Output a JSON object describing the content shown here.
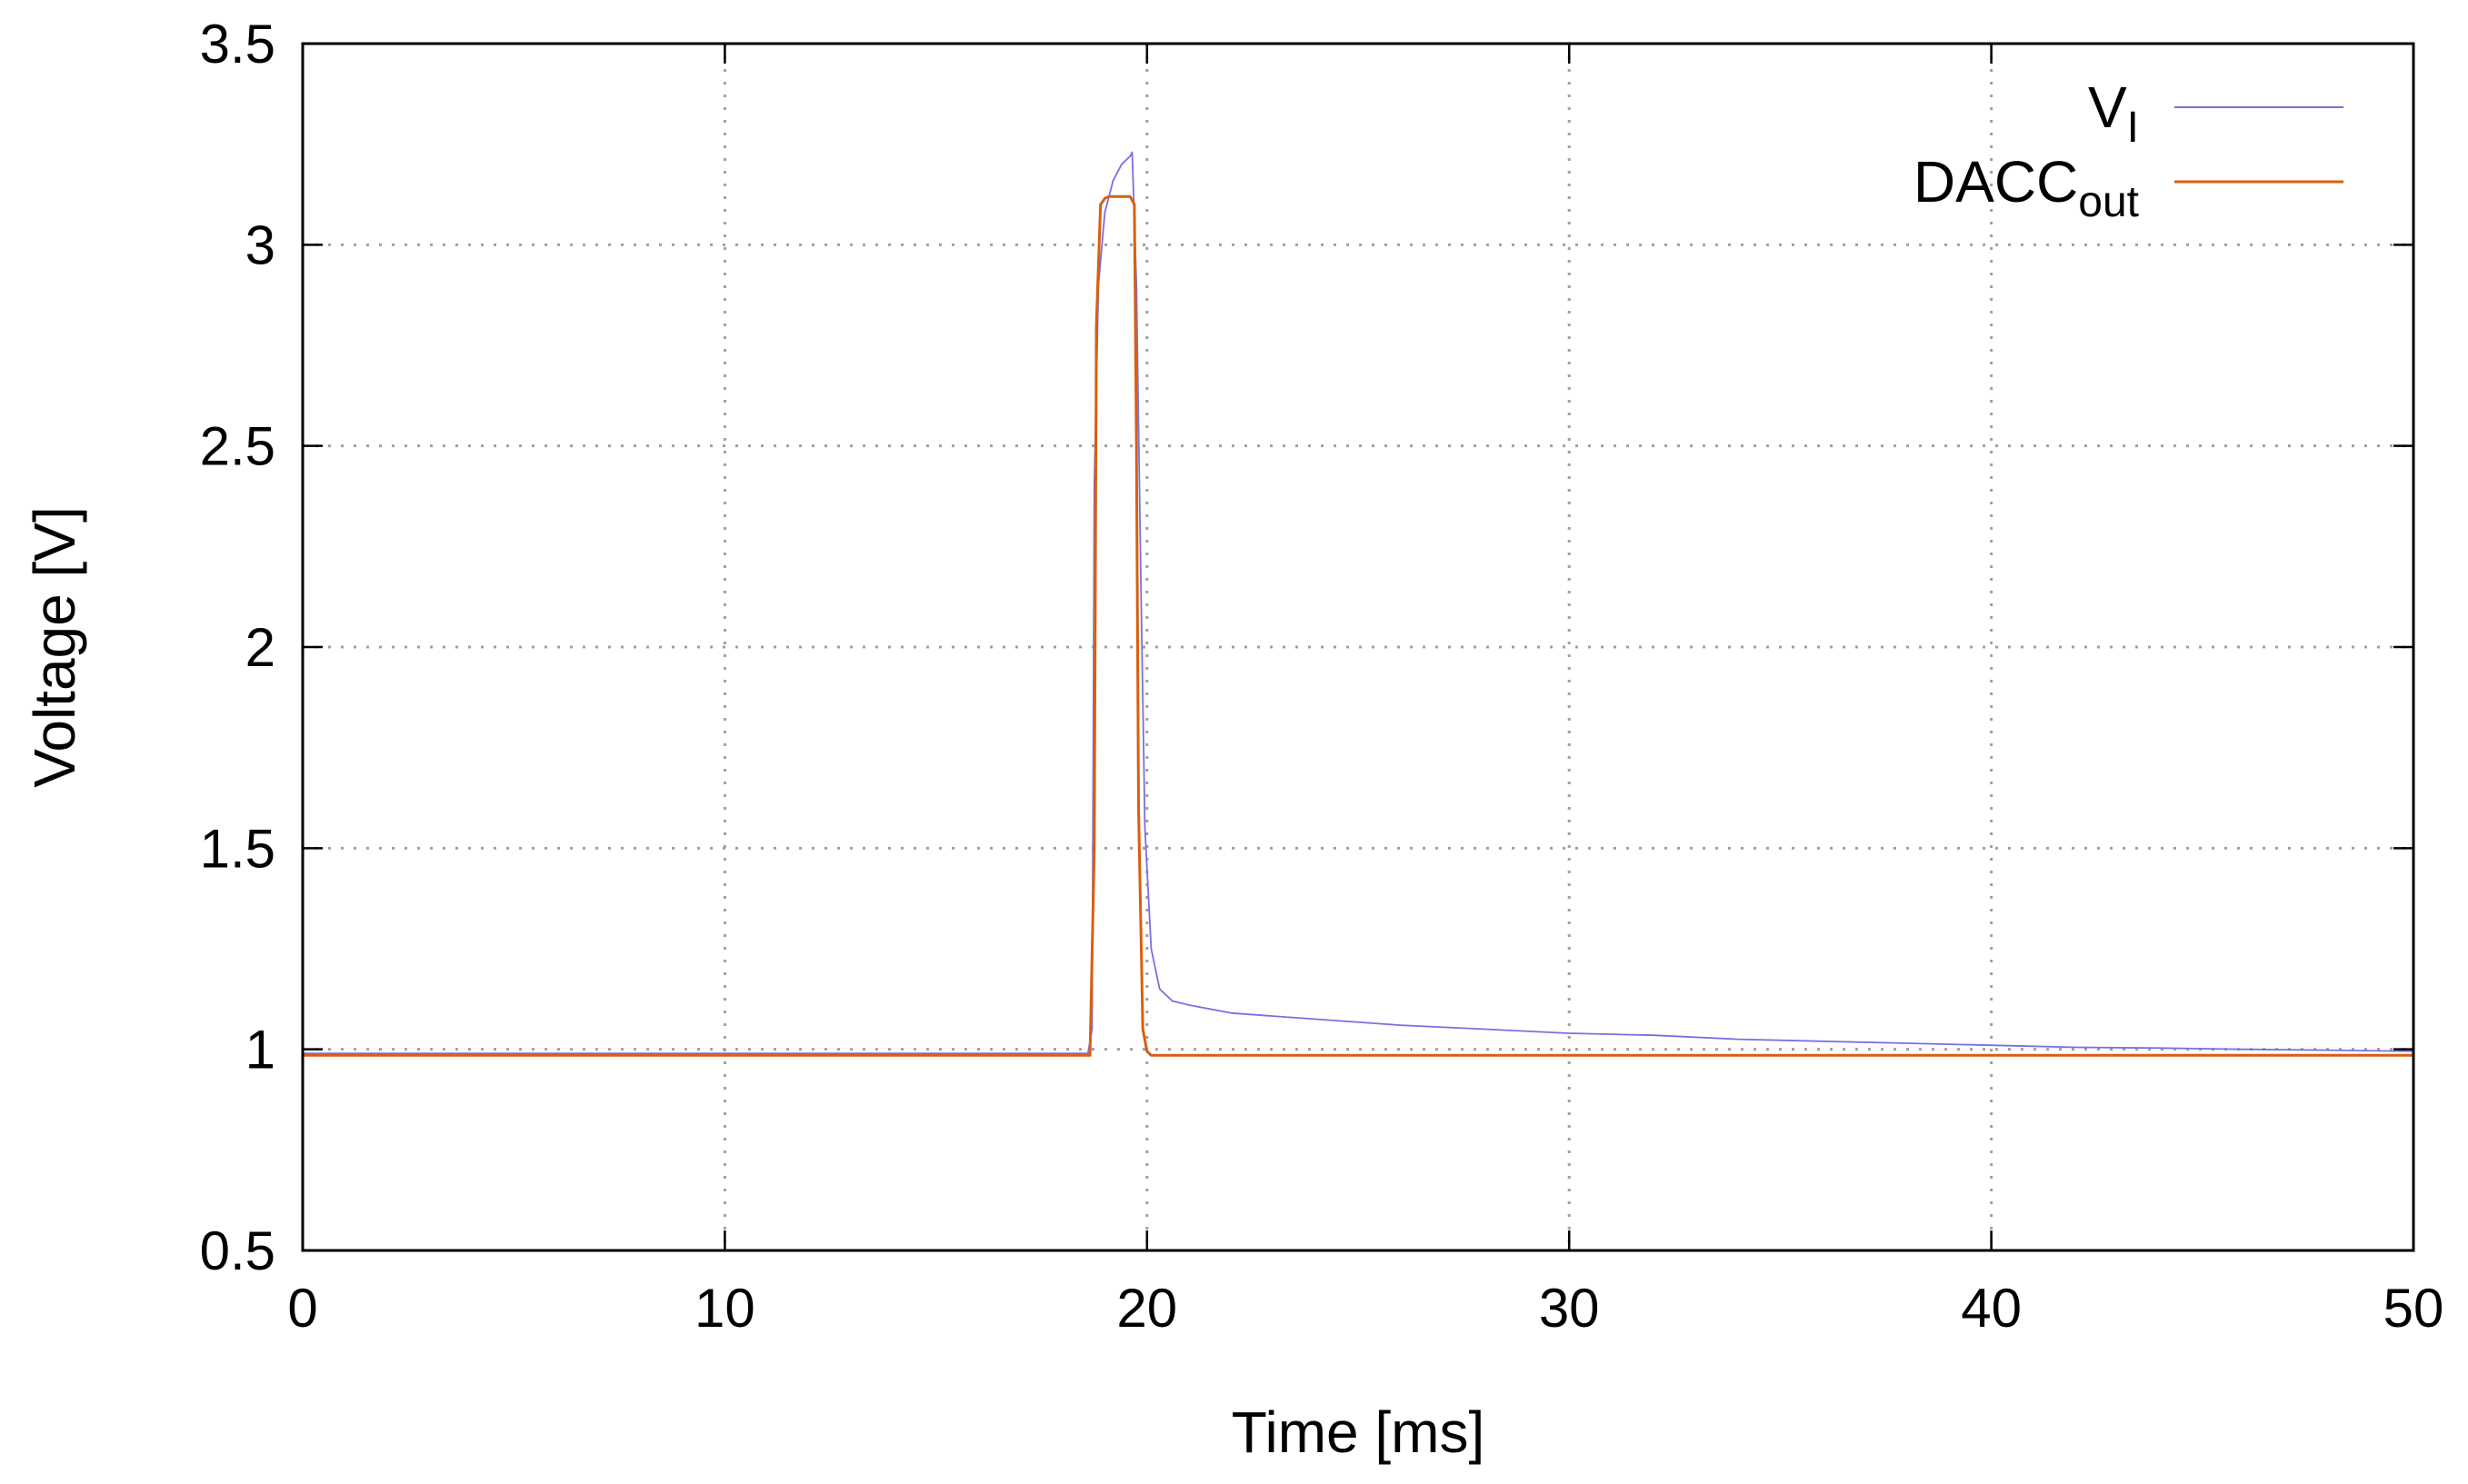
{
  "chart_data": {
    "type": "line",
    "title": "",
    "xlabel": "Time [ms]",
    "ylabel": "Voltage [V]",
    "xlim": [
      0,
      50
    ],
    "ylim": [
      0.5,
      3.5
    ],
    "grid": true,
    "legend_position": "top-right",
    "x_ticks": [
      "0",
      "10",
      "20",
      "30",
      "40",
      "50"
    ],
    "y_ticks": [
      "0.5",
      "1",
      "1.5",
      "2",
      "2.5",
      "3",
      "3.5"
    ],
    "series": [
      {
        "name": "V_I",
        "name_main": "V",
        "name_sub": "I",
        "color": "#7b6fe0",
        "x": [
          0,
          10,
          18.6,
          18.7,
          18.75,
          18.85,
          19.0,
          19.2,
          19.4,
          19.6,
          19.65,
          19.75,
          19.85,
          19.95,
          20.1,
          20.3,
          20.6,
          21,
          22,
          24,
          26,
          28,
          30,
          32,
          34,
          36,
          38,
          40,
          42,
          44,
          46,
          48,
          50
        ],
        "y": [
          0.99,
          0.99,
          0.99,
          1.05,
          2.4,
          2.9,
          3.08,
          3.16,
          3.2,
          3.22,
          3.23,
          2.9,
          2.2,
          1.55,
          1.25,
          1.15,
          1.12,
          1.11,
          1.09,
          1.075,
          1.06,
          1.05,
          1.04,
          1.035,
          1.025,
          1.02,
          1.015,
          1.01,
          1.005,
          1.003,
          1.0,
          0.998,
          0.995
        ]
      },
      {
        "name": "DACC_out",
        "name_main": "DACC",
        "name_sub": "out",
        "color": "#d95f0e",
        "x": [
          0,
          10,
          18.65,
          18.75,
          18.8,
          18.9,
          19.0,
          19.1,
          19.3,
          19.5,
          19.6,
          19.7,
          19.75,
          19.8,
          19.9,
          20.0,
          20.1,
          20.5,
          25,
          30,
          35,
          40,
          45,
          50
        ],
        "y": [
          0.985,
          0.985,
          0.985,
          1.5,
          2.8,
          3.1,
          3.115,
          3.12,
          3.12,
          3.12,
          3.12,
          3.1,
          2.5,
          1.6,
          1.05,
          0.995,
          0.985,
          0.985,
          0.985,
          0.985,
          0.985,
          0.985,
          0.985,
          0.985
        ]
      }
    ]
  }
}
